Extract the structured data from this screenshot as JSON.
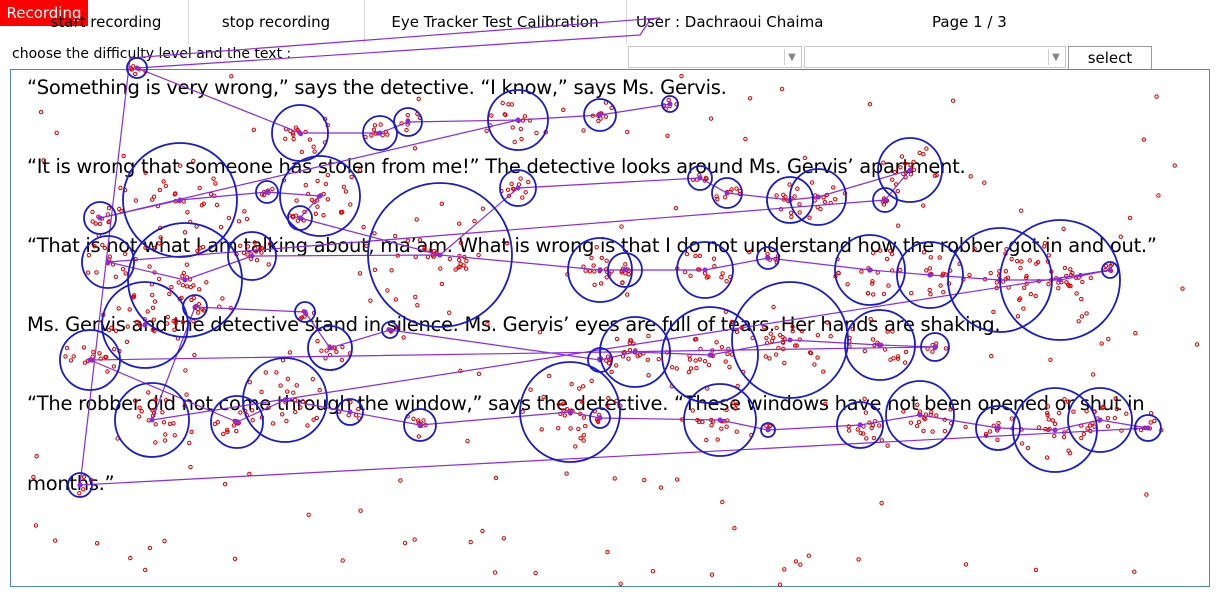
{
  "toolbar": {
    "start_label": "start recording",
    "stop_label": "stop recording",
    "calibration_label": "Eye Tracker Test Calibration",
    "user_label": "User : Dachraoui Chaima",
    "page_indicator": "Page 1 / 3",
    "status_label": "Recording",
    "status_color": "#ff0000"
  },
  "selection": {
    "prompt": "choose the difficulty level and the text :",
    "difficulty_value": "",
    "text_value": "",
    "select_label": "select"
  },
  "reading_text": {
    "lines": [
      "“Something is very wrong,” says the detective. “I know,” says Ms. Gervis.",
      "“It is wrong that someone has stolen from me!” The detective looks around Ms. Gervis’ apartment.",
      "“That is not what I am talking about, ma’am. What is wrong is that I do not understand how the robber got in and out.”",
      "Ms. Gervis and the detective stand in silence. Ms. Gervis’ eyes are full of tears. Her hands are shaking.",
      "“The robber did not come through the window,” says the detective. “These windows have not been opened or shut in",
      "months.”"
    ]
  },
  "overlay": {
    "fixation_color": "#1a1ad0",
    "saccade_color": "#8a2be2",
    "gaze_point_color": "#e00000"
  }
}
